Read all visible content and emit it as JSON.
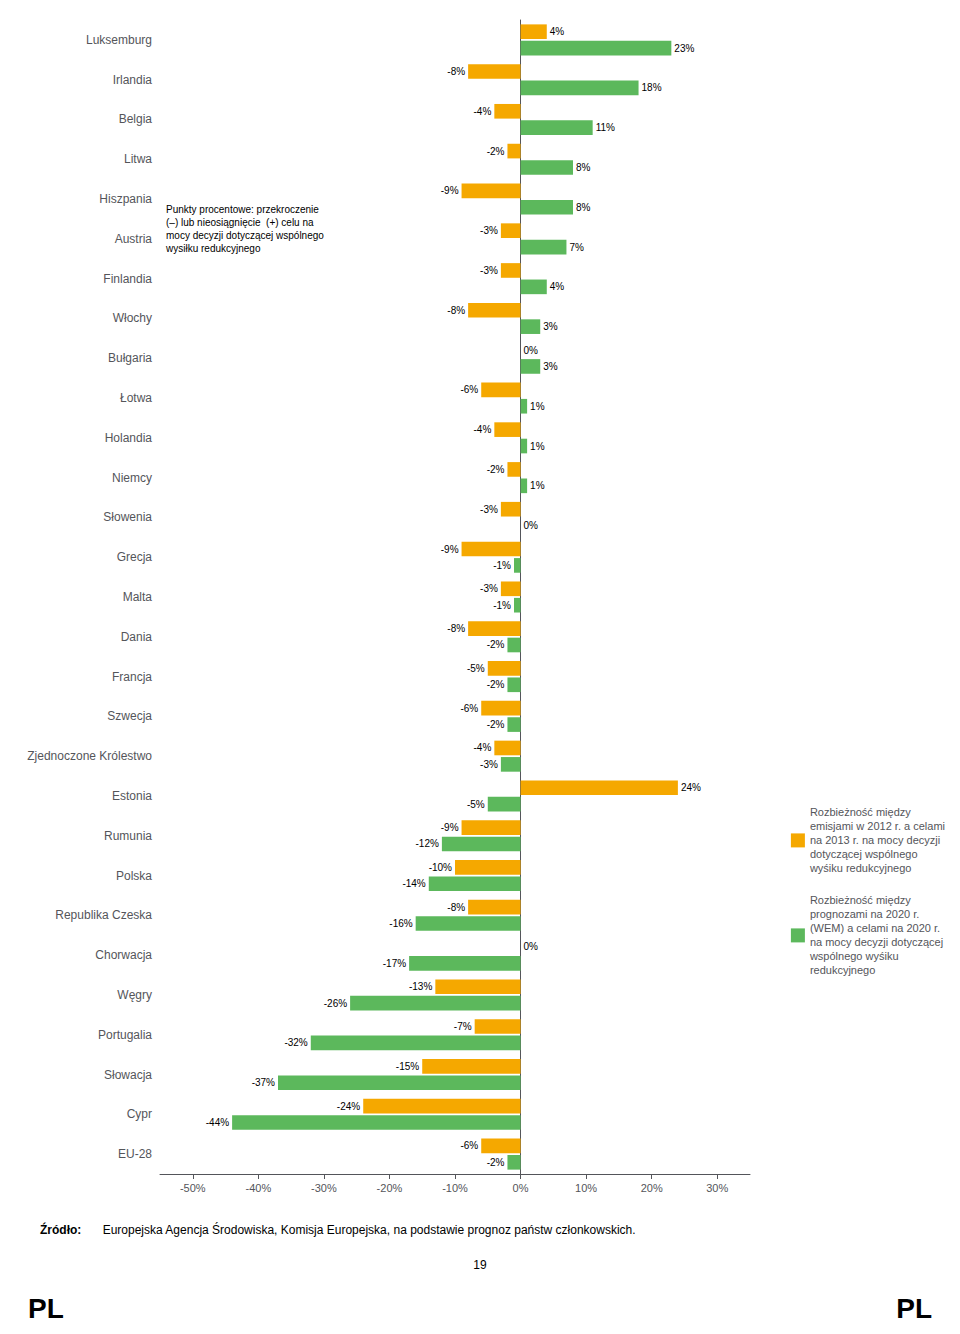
{
  "chart_data": {
    "type": "bar",
    "orientation": "horizontal",
    "categories": [
      "Luksemburg",
      "Irlandia",
      "Belgia",
      "Litwa",
      "Hiszpania",
      "Austria",
      "Finlandia",
      "Włochy",
      "Bułgaria",
      "Łotwa",
      "Holandia",
      "Niemcy",
      "Słowenia",
      "Grecja",
      "Malta",
      "Dania",
      "Francja",
      "Szwecja",
      "Zjednoczone Królestwo",
      "Estonia",
      "Rumunia",
      "Polska",
      "Republika Czeska",
      "Chorwacja",
      "Węgry",
      "Portugalia",
      "Słowacja",
      "Cypr",
      "EU-28"
    ],
    "series": [
      {
        "name": "Rozbieżność między\nemisjami w 2012 r. a celami\nna 2013 r. na mocy decyzji\ndotyczącej wspólnego\nwyśiku redukcyjnego",
        "color": "#F5A800",
        "values": [
          4,
          -8,
          -4,
          -2,
          -9,
          -3,
          -3,
          -8,
          0,
          -6,
          -4,
          -2,
          -3,
          -9,
          -3,
          -8,
          -5,
          -6,
          -4,
          24,
          -9,
          -10,
          -8,
          0,
          -13,
          -7,
          -15,
          -24,
          -6
        ],
        "value_labels": [
          "4%",
          "-8%",
          "-4%",
          "-2%",
          "-9%",
          "-3%",
          "-3%",
          "-8%",
          "0%",
          "-6%",
          "-4%",
          "-2%",
          "-3%",
          "-9%",
          "-3%",
          "-8%",
          "-5%",
          "-6%",
          "-4%",
          "24%",
          "-9%",
          "-10%",
          "-8%",
          "0%",
          "-13%",
          "-7%",
          "-15%",
          "-24%",
          "-6%"
        ]
      },
      {
        "name": "Rozbieżność między\nprognozami na 2020 r.\n(WEM) a celami na 2020 r.\nna mocy decyzji dotyczącej\nwspólnego wyśiku\nredukcyjnego",
        "color": "#5CB85C",
        "values": [
          23,
          18,
          11,
          8,
          8,
          7,
          4,
          3,
          3,
          1,
          1,
          1,
          0,
          -1,
          -1,
          -2,
          -2,
          -2,
          -3,
          -5,
          -12,
          -14,
          -16,
          -17,
          -26,
          -32,
          -37,
          -44,
          -2
        ],
        "value_labels": [
          "23%",
          "18%",
          "11%",
          "8%",
          "8%",
          "7%",
          "4%",
          "3%",
          "3%",
          "1%",
          "1%",
          "1%",
          "0%",
          "-1%",
          "-1%",
          "-2%",
          "-2%",
          "-2%",
          "-3%",
          "-5%",
          "-12%",
          "-14%",
          "-16%",
          "-17%",
          "-26%",
          "-32%",
          "-37%",
          "-44%",
          "-2%"
        ]
      }
    ],
    "xlim": [
      -55,
      35
    ],
    "xticks": [
      {
        "value": -50,
        "label": "-50%"
      },
      {
        "value": -40,
        "label": "-40%"
      },
      {
        "value": -30,
        "label": "-30%"
      },
      {
        "value": -20,
        "label": "-20%"
      },
      {
        "value": -10,
        "label": "-10%"
      },
      {
        "value": 0,
        "label": "0%"
      },
      {
        "value": 10,
        "label": "10%"
      },
      {
        "value": 20,
        "label": "20%"
      },
      {
        "value": 30,
        "label": "30%"
      }
    ],
    "data_labels": true,
    "grid": false,
    "legend": "right",
    "annotations": [
      "Punkty procentowe: przekroczenie\n(–) lub nieosiągnięcie  (+) celu na\nmocy decyzji dotyczącej wspólnego\nwysiłku redukcyjnego",
      "Źródło:",
      " Europejska Agencja Środowiska, Komisja Europejska, na podstawie prognoz państw członkowskich.",
      "19",
      "PL",
      "PL"
    ]
  }
}
